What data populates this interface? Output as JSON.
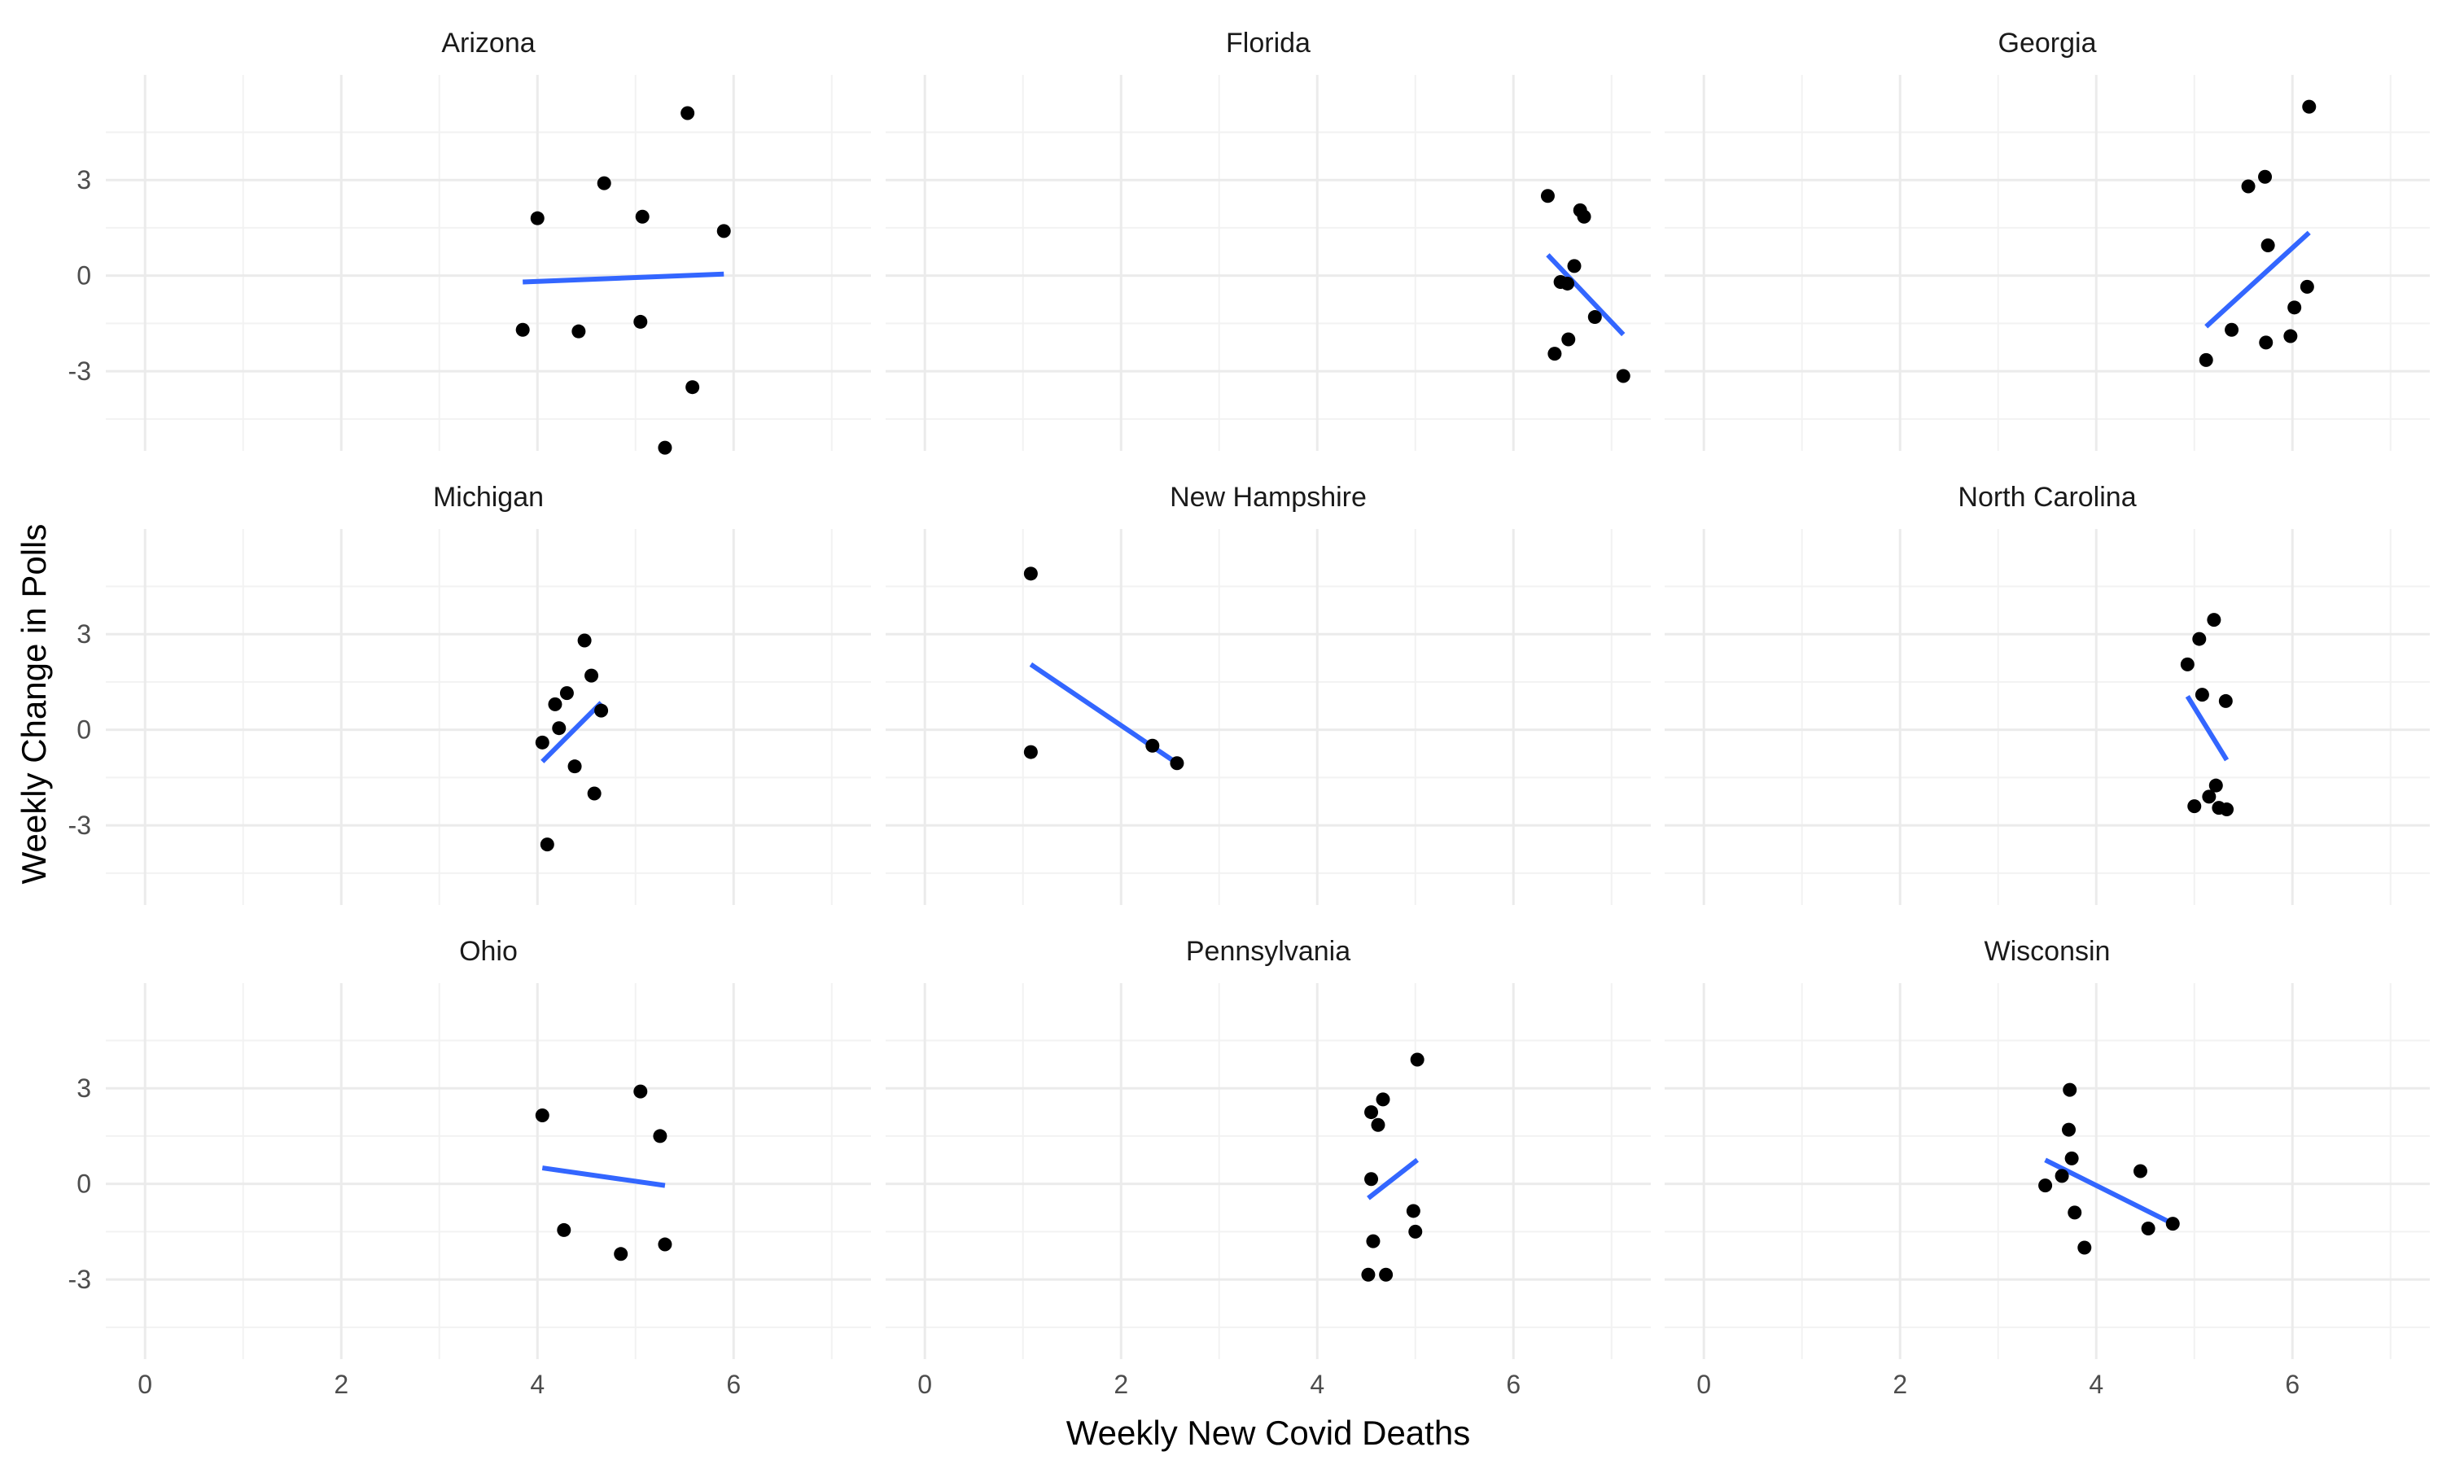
{
  "chart_data": {
    "type": "scatter",
    "facet": "state",
    "xlabel": "Weekly New Covid Deaths",
    "ylabel": "Weekly Change in Polls",
    "xlim": [
      -0.4,
      7.4
    ],
    "ylim": [
      -5.5,
      6.3
    ],
    "xticks": [
      0,
      2,
      4,
      6
    ],
    "xtick_labels": [
      "0",
      "2",
      "4",
      "6"
    ],
    "yticks": [
      -3,
      0,
      3
    ],
    "ytick_labels": [
      "-3",
      "0",
      "3"
    ],
    "grid": true,
    "trend": "linear fit per panel",
    "colors": {
      "points": "#000000",
      "fit": "#3366ff",
      "grid": "#ebebeb"
    },
    "panels": [
      {
        "title": "Arizona",
        "points": [
          [
            3.85,
            -1.7
          ],
          [
            4.0,
            1.8
          ],
          [
            4.42,
            -1.75
          ],
          [
            4.68,
            2.9
          ],
          [
            5.05,
            -1.45
          ],
          [
            5.07,
            1.85
          ],
          [
            5.3,
            -5.4
          ],
          [
            5.53,
            5.1
          ],
          [
            5.58,
            -3.5
          ],
          [
            5.9,
            1.4
          ]
        ],
        "fit": [
          [
            3.85,
            -0.2
          ],
          [
            5.9,
            0.05
          ]
        ]
      },
      {
        "title": "Florida",
        "points": [
          [
            6.35,
            2.5
          ],
          [
            6.42,
            -2.45
          ],
          [
            6.48,
            -0.2
          ],
          [
            6.55,
            -0.25
          ],
          [
            6.56,
            -2.0
          ],
          [
            6.62,
            0.3
          ],
          [
            6.68,
            2.05
          ],
          [
            6.72,
            1.85
          ],
          [
            6.83,
            -1.3
          ],
          [
            7.12,
            -3.15
          ]
        ],
        "fit": [
          [
            6.35,
            0.65
          ],
          [
            7.12,
            -1.85
          ]
        ]
      },
      {
        "title": "Georgia",
        "points": [
          [
            5.12,
            -2.65
          ],
          [
            5.38,
            -1.7
          ],
          [
            5.55,
            2.8
          ],
          [
            5.72,
            3.1
          ],
          [
            5.73,
            -2.1
          ],
          [
            5.75,
            0.95
          ],
          [
            5.98,
            -1.9
          ],
          [
            6.02,
            -1.0
          ],
          [
            6.15,
            -0.35
          ],
          [
            6.17,
            5.3
          ]
        ],
        "fit": [
          [
            5.12,
            -1.6
          ],
          [
            6.17,
            1.35
          ]
        ]
      },
      {
        "title": "Michigan",
        "points": [
          [
            4.05,
            -0.4
          ],
          [
            4.1,
            -3.6
          ],
          [
            4.18,
            0.8
          ],
          [
            4.22,
            0.05
          ],
          [
            4.3,
            1.15
          ],
          [
            4.38,
            -1.15
          ],
          [
            4.48,
            2.8
          ],
          [
            4.55,
            1.7
          ],
          [
            4.58,
            -2.0
          ],
          [
            4.65,
            0.6
          ]
        ],
        "fit": [
          [
            4.05,
            -1.0
          ],
          [
            4.65,
            0.85
          ]
        ]
      },
      {
        "title": "New Hampshire",
        "points": [
          [
            1.08,
            4.9
          ],
          [
            1.08,
            -0.7
          ],
          [
            2.32,
            -0.5
          ],
          [
            2.57,
            -1.05
          ]
        ],
        "fit": [
          [
            1.08,
            2.05
          ],
          [
            2.57,
            -1.05
          ]
        ]
      },
      {
        "title": "North Carolina",
        "points": [
          [
            4.93,
            2.05
          ],
          [
            5.0,
            -2.4
          ],
          [
            5.05,
            2.85
          ],
          [
            5.08,
            1.1
          ],
          [
            5.15,
            -2.1
          ],
          [
            5.2,
            3.45
          ],
          [
            5.22,
            -1.75
          ],
          [
            5.25,
            -2.45
          ],
          [
            5.32,
            0.9
          ],
          [
            5.33,
            -2.5
          ]
        ],
        "fit": [
          [
            4.93,
            1.05
          ],
          [
            5.33,
            -0.95
          ]
        ]
      },
      {
        "title": "Ohio",
        "points": [
          [
            4.05,
            2.15
          ],
          [
            4.27,
            -1.45
          ],
          [
            4.85,
            -2.2
          ],
          [
            5.05,
            2.9
          ],
          [
            5.25,
            1.5
          ],
          [
            5.3,
            -1.9
          ]
        ],
        "fit": [
          [
            4.05,
            0.5
          ],
          [
            5.3,
            -0.05
          ]
        ]
      },
      {
        "title": "Pennsylvania",
        "points": [
          [
            4.52,
            -2.85
          ],
          [
            4.55,
            2.25
          ],
          [
            4.55,
            0.15
          ],
          [
            4.57,
            -1.8
          ],
          [
            4.62,
            1.85
          ],
          [
            4.67,
            2.65
          ],
          [
            4.7,
            -2.85
          ],
          [
            4.98,
            -0.85
          ],
          [
            5.0,
            -1.5
          ],
          [
            5.02,
            3.9
          ]
        ],
        "fit": [
          [
            4.52,
            -0.45
          ],
          [
            5.02,
            0.75
          ]
        ]
      },
      {
        "title": "Wisconsin",
        "points": [
          [
            3.48,
            -0.05
          ],
          [
            3.65,
            0.25
          ],
          [
            3.72,
            1.7
          ],
          [
            3.73,
            2.95
          ],
          [
            3.75,
            0.8
          ],
          [
            3.78,
            -0.9
          ],
          [
            3.88,
            -2.0
          ],
          [
            4.45,
            0.4
          ],
          [
            4.53,
            -1.4
          ],
          [
            4.78,
            -1.25
          ]
        ],
        "fit": [
          [
            3.48,
            0.75
          ],
          [
            4.78,
            -1.25
          ]
        ]
      }
    ]
  }
}
